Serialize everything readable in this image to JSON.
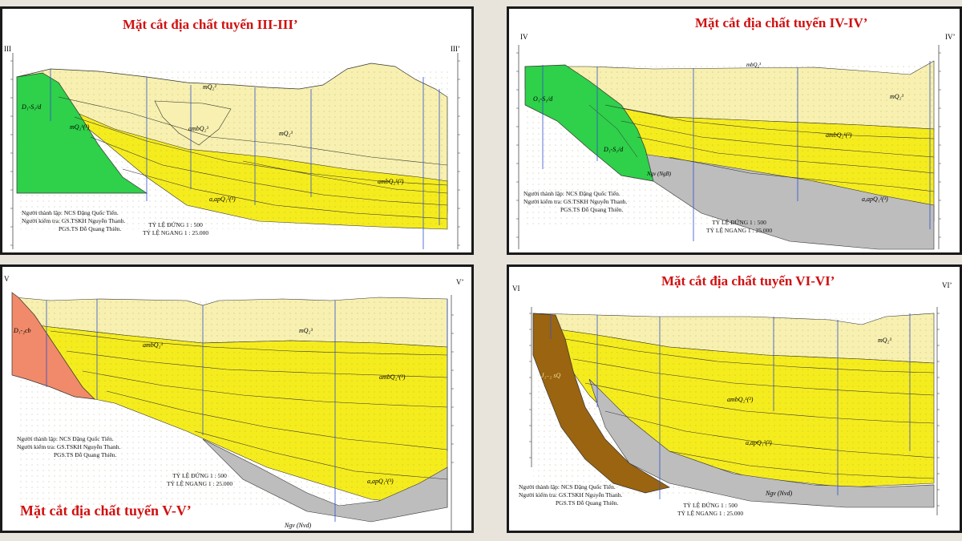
{
  "sections": {
    "s3": {
      "title": "Mặt cắt địa chất tuyến III-III’",
      "left_end": "III",
      "right_end": "III’"
    },
    "s4": {
      "title": "Mặt cắt địa chất tuyến IV-IV’",
      "left_end": "IV",
      "right_end": "IV’"
    },
    "s5": {
      "title": "Mặt cắt địa chất tuyến V-V’",
      "left_end": "V",
      "right_end": "V’"
    },
    "s6": {
      "title": "Mặt cắt địa chất tuyến VI-VI’",
      "left_end": "VI",
      "right_end": "VI’"
    }
  },
  "credits": {
    "maker": "Người thành lập: NCS Đặng Quốc Tiến.",
    "checker": "Người kiểm tra: GS.TSKH Nguyễn Thanh.",
    "checker2": "PGS.TS Đỗ Quang Thiên."
  },
  "scales": {
    "vertical": "TỶ LỆ ĐỨNG 1 : 500",
    "horizontal": "TỶ LỆ NGANG 1 : 25.000"
  },
  "units": {
    "s3": [
      "D₁-S₁/d",
      "mQ₂¹(²)",
      "mQ₂²",
      "mQ₂³",
      "ambQ₂³",
      "ambQ₂¹(²)",
      "a,apQ₁²(³)"
    ],
    "s4": [
      "O₁-S₁/d",
      "D₁-S₁/d",
      "mbQ₂³",
      "mQ₂³",
      "ambQ₂¹(²)",
      "a,apQ₁²(³)",
      "Ngv (NgB)"
    ],
    "s5": [
      "D₁-₂cb",
      "mQ₂³",
      "ambQ₂³",
      "ambQ₂¹(²)",
      "a,apQ₁²(³)",
      "Ngv (Nvd)"
    ],
    "s6": [
      "J₁₋₂ sQ",
      "mQ₂³",
      "ambQ₂¹(²)",
      "a,apQ₁²(³)",
      "Ngv (Nvd)"
    ]
  },
  "colors": {
    "yellow": "#f5ec1e",
    "light_yellow": "#f7f0b0",
    "green": "#2fd04a",
    "salmon": "#f08a6a",
    "brown": "#9a6410",
    "gray": "#bdbdbd",
    "title_red": "#d01010"
  }
}
